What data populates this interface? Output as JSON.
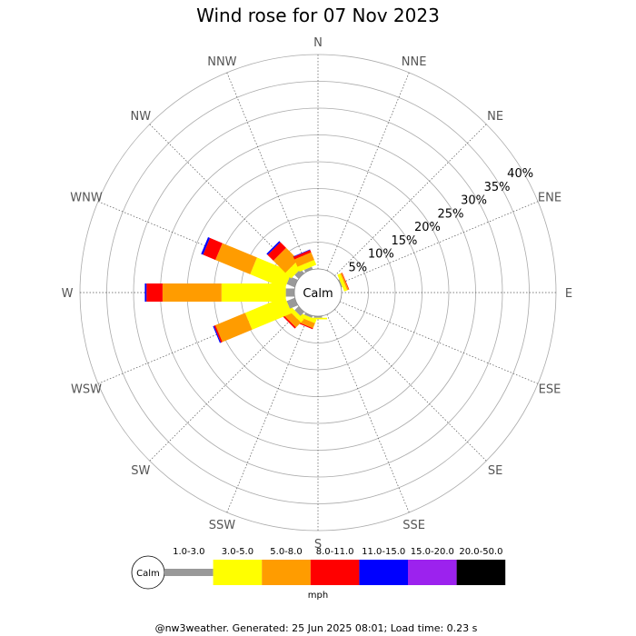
{
  "chart_data": {
    "type": "windrose",
    "title": "Wind rose for 07 Nov 2023",
    "directions": [
      "N",
      "NNE",
      "NE",
      "ENE",
      "E",
      "ESE",
      "SE",
      "SSE",
      "S",
      "SSW",
      "SW",
      "WSW",
      "W",
      "WNW",
      "NW",
      "NNW"
    ],
    "radial_ticks": [
      5,
      10,
      15,
      20,
      25,
      30,
      35,
      40
    ],
    "radial_tick_labels": [
      "5%",
      "10%",
      "15%",
      "20%",
      "25%",
      "30%",
      "35%",
      "40%"
    ],
    "radial_max": 40,
    "calm_label": "Calm",
    "speed_bins": [
      {
        "label": "1.0-3.0",
        "color": "#999999"
      },
      {
        "label": "3.0-5.0",
        "color": "#ffff00"
      },
      {
        "label": "5.0-8.0",
        "color": "#ff9c00"
      },
      {
        "label": "8.0-11.0",
        "color": "#ff0000"
      },
      {
        "label": "11.0-15.0",
        "color": "#0000ff"
      },
      {
        "label": "15.0-20.0",
        "color": "#9c22ee"
      },
      {
        "label": "20.0-50.0",
        "color": "#000000"
      }
    ],
    "speed_unit": "mph",
    "series": [
      {
        "direction": "N",
        "values": [
          0,
          0,
          0,
          0,
          0,
          0,
          0
        ]
      },
      {
        "direction": "NNE",
        "values": [
          0,
          0,
          0,
          0,
          0,
          0,
          0
        ]
      },
      {
        "direction": "NE",
        "values": [
          0,
          0,
          0,
          0,
          0,
          0,
          0
        ]
      },
      {
        "direction": "ENE",
        "values": [
          0.2,
          0.6,
          0.3,
          0.1,
          0,
          0,
          0
        ]
      },
      {
        "direction": "E",
        "values": [
          0,
          0,
          0,
          0,
          0,
          0,
          0
        ]
      },
      {
        "direction": "ESE",
        "values": [
          0,
          0,
          0,
          0,
          0,
          0,
          0
        ]
      },
      {
        "direction": "SE",
        "values": [
          0,
          0,
          0,
          0,
          0,
          0,
          0
        ]
      },
      {
        "direction": "SSE",
        "values": [
          0,
          0,
          0,
          0,
          0,
          0,
          0
        ]
      },
      {
        "direction": "S",
        "values": [
          0.3,
          0.3,
          0,
          0,
          0,
          0,
          0
        ]
      },
      {
        "direction": "SSW",
        "values": [
          0.4,
          0.7,
          1.0,
          0.2,
          0,
          0,
          0
        ]
      },
      {
        "direction": "SW",
        "values": [
          1.0,
          0.8,
          1.3,
          0.3,
          0,
          0,
          0
        ]
      },
      {
        "direction": "WSW",
        "values": [
          1.6,
          8.0,
          6.0,
          0.3,
          0.2,
          0,
          0
        ]
      },
      {
        "direction": "W",
        "values": [
          1.6,
          12.0,
          11.0,
          3.0,
          0.3,
          0,
          0
        ]
      },
      {
        "direction": "WNW",
        "values": [
          1.6,
          7.0,
          7.0,
          2.5,
          0.4,
          0,
          0
        ]
      },
      {
        "direction": "NW",
        "values": [
          1.0,
          1.5,
          3.2,
          1.5,
          0.3,
          0,
          0
        ]
      },
      {
        "direction": "NNW",
        "values": [
          0.5,
          1.0,
          1.5,
          0.5,
          0.1,
          0,
          0
        ]
      }
    ],
    "footer": "@nw3weather. Generated: 25 Jun 2025 08:01; Load time: 0.23 s"
  }
}
